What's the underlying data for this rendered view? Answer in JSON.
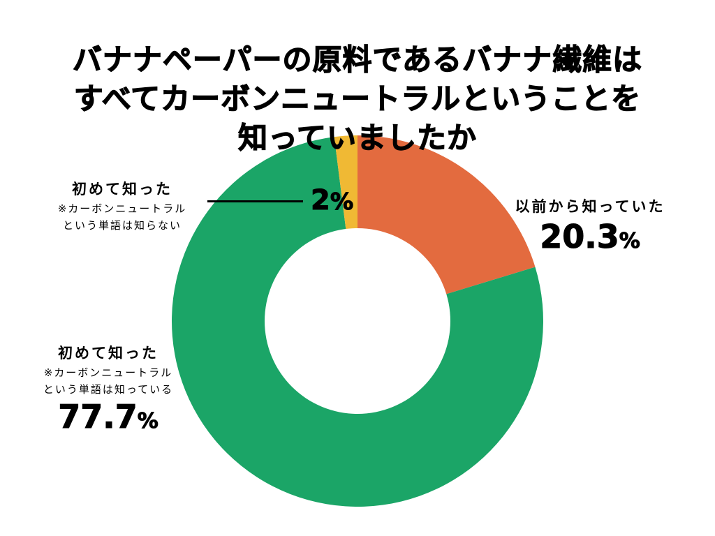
{
  "title": {
    "line1": "バナナペーパーの原料であるバナナ繊維は",
    "line2": "すべてカーボンニュートラルということを",
    "line3": "知っていましたか"
  },
  "labels": {
    "known": {
      "main": "以前から知っていた",
      "pct": "20.3",
      "pct_sign": "%"
    },
    "aware": {
      "main": "初めて知った",
      "sub1": "※カーボンニュートラル",
      "sub2": "という単語は知っている",
      "pct": "77.7",
      "pct_sign": "%"
    },
    "unaware": {
      "main": "初めて知った",
      "sub1": "※カーボンニュートラル",
      "sub2": "という単語は知らない",
      "pct": "2",
      "pct_sign": "%"
    }
  },
  "chart_data": {
    "type": "pie",
    "donut": true,
    "title": "バナナペーパーの原料であるバナナ繊維はすべてカーボンニュートラルということを知っていましたか",
    "categories": [
      "以前から知っていた",
      "初めて知った ※カーボンニュートラルという単語は知っている",
      "初めて知った ※カーボンニュートラルという単語は知らない"
    ],
    "values": [
      20.3,
      77.7,
      2
    ],
    "colors": [
      "#E36B3F",
      "#1BA567",
      "#F0B934"
    ],
    "start_angle": "top",
    "direction": "clockwise",
    "legend": "none (direct labels)"
  },
  "colors": {
    "orange": "#E36B3F",
    "green": "#1BA567",
    "yellow": "#F0B934",
    "text": "#000000",
    "background": "#FFFFFF"
  }
}
